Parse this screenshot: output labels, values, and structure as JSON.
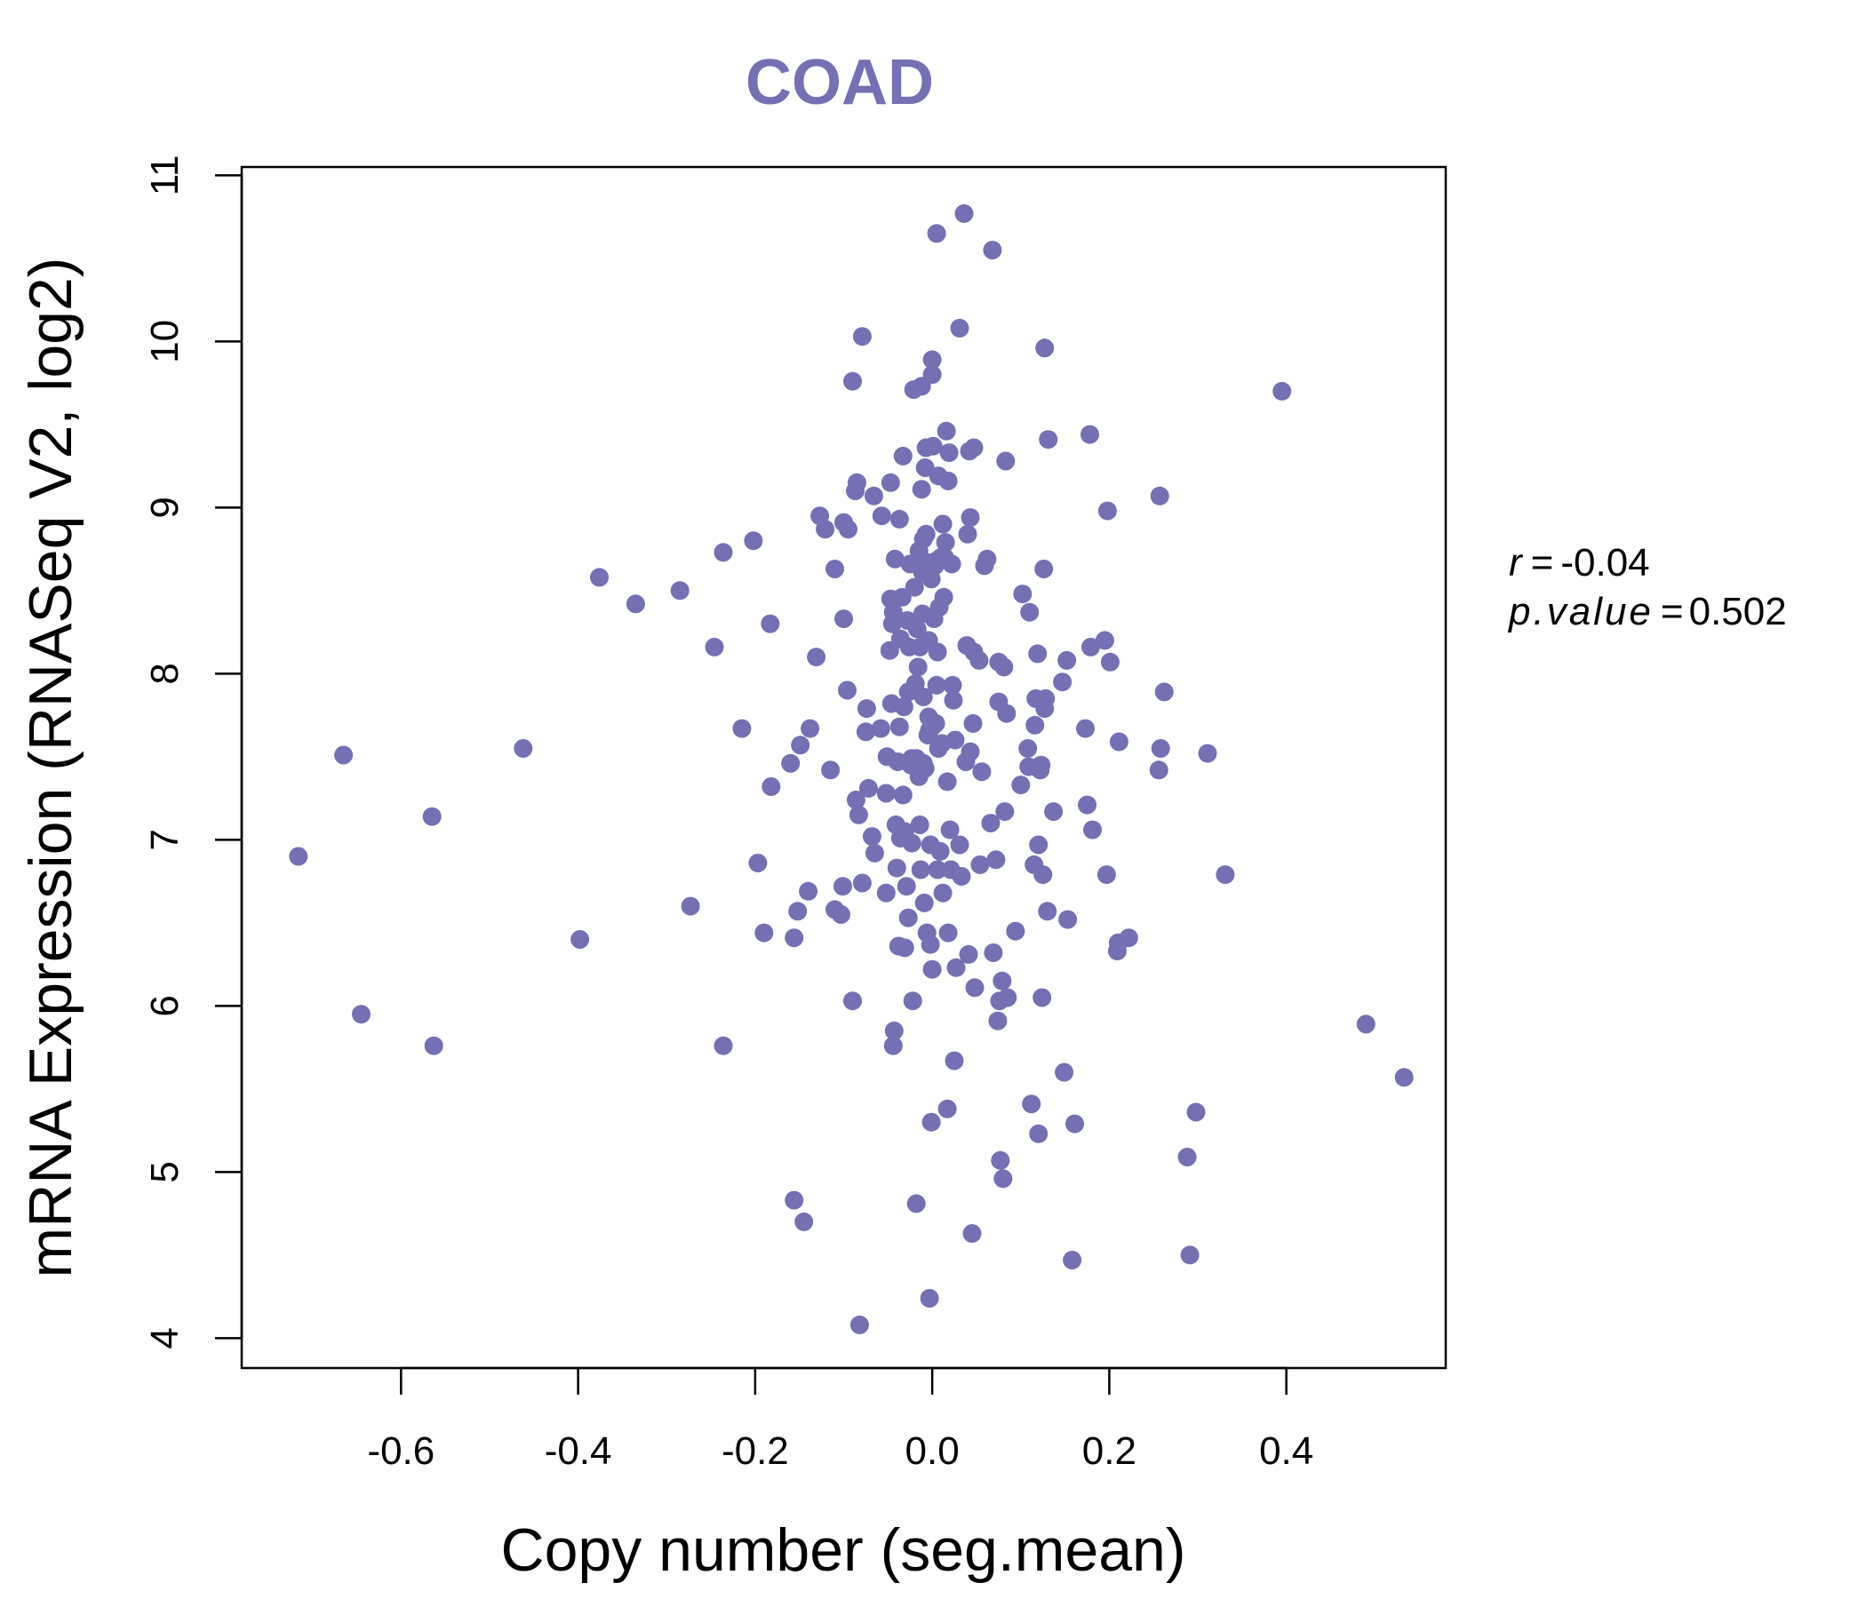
{
  "chart_data": {
    "type": "scatter",
    "title": "COAD",
    "xlabel": "Copy number (seg.mean)",
    "ylabel": "mRNA Expression (RNASeq V2, log2)",
    "xlim": [
      -0.78,
      0.58
    ],
    "ylim": [
      3.82,
      11.05
    ],
    "x_ticks": [
      -0.6,
      -0.4,
      -0.2,
      0.0,
      0.2,
      0.4
    ],
    "x_tick_labels": [
      "-0.6",
      "-0.4",
      "-0.2",
      "0.0",
      "0.2",
      "0.4"
    ],
    "y_ticks": [
      4,
      5,
      6,
      7,
      8,
      9,
      10,
      11
    ],
    "y_tick_labels": [
      "4",
      "5",
      "6",
      "7",
      "8",
      "9",
      "10",
      "11"
    ],
    "grid": false,
    "annotation": {
      "r_label": "r",
      "r_value": "-0.04",
      "p_label": "p.value",
      "p_value": "0.502"
    },
    "color": "#7570b3",
    "points": [
      [
        -0.716,
        6.9
      ],
      [
        -0.665,
        7.51
      ],
      [
        -0.645,
        5.95
      ],
      [
        -0.565,
        7.14
      ],
      [
        -0.563,
        5.76
      ],
      [
        -0.462,
        7.55
      ],
      [
        -0.398,
        6.4
      ],
      [
        -0.376,
        8.58
      ],
      [
        -0.335,
        8.42
      ],
      [
        -0.285,
        8.5
      ],
      [
        -0.273,
        6.6
      ],
      [
        -0.246,
        8.16
      ],
      [
        -0.236,
        8.73
      ],
      [
        -0.236,
        5.76
      ],
      [
        -0.215,
        7.67
      ],
      [
        -0.202,
        8.8
      ],
      [
        -0.197,
        6.86
      ],
      [
        -0.19,
        6.44
      ],
      [
        -0.183,
        8.3
      ],
      [
        -0.182,
        7.32
      ],
      [
        -0.16,
        7.46
      ],
      [
        -0.156,
        6.41
      ],
      [
        -0.156,
        4.83
      ],
      [
        -0.152,
        6.57
      ],
      [
        -0.149,
        7.57
      ],
      [
        -0.145,
        4.7
      ],
      [
        -0.14,
        6.69
      ],
      [
        -0.138,
        7.67
      ],
      [
        -0.131,
        8.1
      ],
      [
        -0.127,
        8.95
      ],
      [
        -0.121,
        8.87
      ],
      [
        -0.115,
        7.42
      ],
      [
        -0.11,
        8.63
      ],
      [
        -0.11,
        6.58
      ],
      [
        -0.103,
        6.55
      ],
      [
        -0.101,
        6.72
      ],
      [
        -0.1,
        8.33
      ],
      [
        -0.1,
        8.91
      ],
      [
        -0.096,
        7.9
      ],
      [
        -0.095,
        8.87
      ],
      [
        -0.09,
        9.76
      ],
      [
        -0.09,
        6.03
      ],
      [
        -0.087,
        9.1
      ],
      [
        -0.086,
        7.24
      ],
      [
        -0.085,
        9.15
      ],
      [
        -0.083,
        7.15
      ],
      [
        -0.082,
        4.08
      ],
      [
        -0.079,
        10.03
      ],
      [
        -0.079,
        6.74
      ],
      [
        -0.075,
        7.65
      ],
      [
        -0.074,
        7.79
      ],
      [
        -0.072,
        7.31
      ],
      [
        -0.068,
        7.02
      ],
      [
        -0.066,
        9.07
      ],
      [
        -0.065,
        6.92
      ],
      [
        -0.058,
        7.67
      ],
      [
        -0.057,
        8.95
      ],
      [
        -0.052,
        7.28
      ],
      [
        -0.052,
        6.68
      ],
      [
        -0.051,
        7.5
      ],
      [
        -0.048,
        8.14
      ],
      [
        -0.047,
        8.45
      ],
      [
        -0.047,
        9.15
      ],
      [
        -0.046,
        7.82
      ],
      [
        -0.045,
        8.3
      ],
      [
        -0.044,
        8.37
      ],
      [
        -0.044,
        5.76
      ],
      [
        -0.043,
        5.85
      ],
      [
        -0.042,
        8.69
      ],
      [
        -0.041,
        7.09
      ],
      [
        -0.04,
        6.83
      ],
      [
        -0.039,
        7.47
      ],
      [
        -0.038,
        6.36
      ],
      [
        -0.037,
        8.93
      ],
      [
        -0.037,
        7.68
      ],
      [
        -0.036,
        8.21
      ],
      [
        -0.036,
        7.01
      ],
      [
        -0.034,
        8.46
      ],
      [
        -0.033,
        9.31
      ],
      [
        -0.033,
        7.27
      ],
      [
        -0.032,
        7.8
      ],
      [
        -0.031,
        7.05
      ],
      [
        -0.031,
        6.35
      ],
      [
        -0.029,
        6.72
      ],
      [
        -0.028,
        8.32
      ],
      [
        -0.027,
        7.89
      ],
      [
        -0.027,
        6.53
      ],
      [
        -0.026,
        8.16
      ],
      [
        -0.025,
        8.66
      ],
      [
        -0.024,
        7.45
      ],
      [
        -0.023,
        6.98
      ],
      [
        -0.023,
        7.49
      ],
      [
        -0.022,
        6.03
      ],
      [
        -0.021,
        9.71
      ],
      [
        -0.02,
        8.52
      ],
      [
        -0.019,
        7.94
      ],
      [
        -0.018,
        7.49
      ],
      [
        -0.018,
        4.81
      ],
      [
        -0.017,
        8.27
      ],
      [
        -0.016,
        8.04
      ],
      [
        -0.015,
        8.74
      ],
      [
        -0.015,
        7.38
      ],
      [
        -0.014,
        8.16
      ],
      [
        -0.014,
        7.09
      ],
      [
        -0.013,
        6.82
      ],
      [
        -0.012,
        9.73
      ],
      [
        -0.012,
        9.11
      ],
      [
        -0.011,
        8.36
      ],
      [
        -0.011,
        8.61
      ],
      [
        -0.01,
        8.81
      ],
      [
        -0.01,
        7.86
      ],
      [
        -0.01,
        7.46
      ],
      [
        -0.009,
        6.62
      ],
      [
        -0.008,
        9.24
      ],
      [
        -0.008,
        7.43
      ],
      [
        -0.007,
        8.84
      ],
      [
        -0.007,
        9.36
      ],
      [
        -0.006,
        8.67
      ],
      [
        -0.006,
        6.44
      ],
      [
        -0.005,
        7.63
      ],
      [
        -0.004,
        8.2
      ],
      [
        -0.004,
        7.74
      ],
      [
        -0.003,
        7.66
      ],
      [
        -0.003,
        4.24
      ],
      [
        -0.002,
        6.97
      ],
      [
        -0.002,
        6.37
      ],
      [
        -0.001,
        8.57
      ],
      [
        -0.001,
        5.3
      ],
      [
        0.0,
        9.89
      ],
      [
        0.0,
        9.8
      ],
      [
        0.0,
        7.68
      ],
      [
        0.0,
        6.22
      ],
      [
        0.001,
        9.37
      ],
      [
        0.002,
        8.33
      ],
      [
        0.003,
        8.65
      ],
      [
        0.004,
        7.7
      ],
      [
        0.005,
        10.65
      ],
      [
        0.005,
        8.68
      ],
      [
        0.005,
        7.93
      ],
      [
        0.006,
        8.13
      ],
      [
        0.006,
        6.82
      ],
      [
        0.007,
        7.55
      ],
      [
        0.007,
        9.19
      ],
      [
        0.008,
        8.4
      ],
      [
        0.009,
        6.93
      ],
      [
        0.01,
        8.7
      ],
      [
        0.011,
        7.58
      ],
      [
        0.012,
        8.9
      ],
      [
        0.012,
        6.68
      ],
      [
        0.013,
        8.46
      ],
      [
        0.014,
        8.7
      ],
      [
        0.015,
        8.79
      ],
      [
        0.016,
        9.46
      ],
      [
        0.017,
        7.35
      ],
      [
        0.017,
        5.38
      ],
      [
        0.018,
        6.44
      ],
      [
        0.018,
        9.16
      ],
      [
        0.019,
        9.33
      ],
      [
        0.02,
        7.06
      ],
      [
        0.021,
        6.82
      ],
      [
        0.022,
        8.66
      ],
      [
        0.023,
        7.93
      ],
      [
        0.024,
        7.84
      ],
      [
        0.025,
        5.67
      ],
      [
        0.026,
        7.6
      ],
      [
        0.027,
        6.23
      ],
      [
        0.031,
        10.08
      ],
      [
        0.031,
        6.97
      ],
      [
        0.033,
        6.78
      ],
      [
        0.036,
        10.77
      ],
      [
        0.038,
        7.47
      ],
      [
        0.039,
        8.17
      ],
      [
        0.04,
        8.84
      ],
      [
        0.041,
        6.31
      ],
      [
        0.042,
        9.34
      ],
      [
        0.043,
        8.94
      ],
      [
        0.043,
        7.53
      ],
      [
        0.045,
        4.63
      ],
      [
        0.046,
        7.7
      ],
      [
        0.047,
        8.13
      ],
      [
        0.047,
        9.36
      ],
      [
        0.048,
        6.11
      ],
      [
        0.053,
        8.08
      ],
      [
        0.054,
        6.85
      ],
      [
        0.056,
        7.41
      ],
      [
        0.059,
        8.65
      ],
      [
        0.062,
        8.69
      ],
      [
        0.066,
        7.1
      ],
      [
        0.068,
        10.55
      ],
      [
        0.069,
        6.32
      ],
      [
        0.072,
        6.88
      ],
      [
        0.074,
        5.91
      ],
      [
        0.075,
        7.83
      ],
      [
        0.075,
        8.07
      ],
      [
        0.076,
        6.03
      ],
      [
        0.077,
        5.07
      ],
      [
        0.079,
        6.15
      ],
      [
        0.08,
        4.96
      ],
      [
        0.081,
        8.04
      ],
      [
        0.082,
        7.17
      ],
      [
        0.083,
        9.28
      ],
      [
        0.084,
        7.76
      ],
      [
        0.085,
        6.05
      ],
      [
        0.094,
        6.45
      ],
      [
        0.1,
        7.33
      ],
      [
        0.102,
        8.48
      ],
      [
        0.108,
        7.55
      ],
      [
        0.109,
        7.44
      ],
      [
        0.11,
        8.37
      ],
      [
        0.112,
        5.41
      ],
      [
        0.115,
        6.85
      ],
      [
        0.116,
        7.69
      ],
      [
        0.117,
        7.85
      ],
      [
        0.119,
        8.12
      ],
      [
        0.12,
        5.23
      ],
      [
        0.12,
        6.97
      ],
      [
        0.122,
        7.42
      ],
      [
        0.123,
        7.45
      ],
      [
        0.124,
        6.05
      ],
      [
        0.125,
        6.79
      ],
      [
        0.126,
        8.63
      ],
      [
        0.127,
        9.96
      ],
      [
        0.127,
        7.79
      ],
      [
        0.128,
        7.85
      ],
      [
        0.13,
        6.57
      ],
      [
        0.131,
        9.41
      ],
      [
        0.137,
        7.17
      ],
      [
        0.147,
        7.95
      ],
      [
        0.149,
        5.6
      ],
      [
        0.152,
        8.08
      ],
      [
        0.153,
        6.52
      ],
      [
        0.158,
        4.47
      ],
      [
        0.161,
        5.29
      ],
      [
        0.173,
        7.67
      ],
      [
        0.175,
        7.21
      ],
      [
        0.178,
        9.44
      ],
      [
        0.179,
        8.16
      ],
      [
        0.181,
        7.06
      ],
      [
        0.195,
        8.2
      ],
      [
        0.197,
        6.79
      ],
      [
        0.198,
        8.98
      ],
      [
        0.201,
        8.07
      ],
      [
        0.209,
        6.33
      ],
      [
        0.21,
        6.38
      ],
      [
        0.211,
        7.59
      ],
      [
        0.222,
        6.41
      ],
      [
        0.256,
        7.42
      ],
      [
        0.257,
        9.07
      ],
      [
        0.258,
        7.55
      ],
      [
        0.262,
        7.89
      ],
      [
        0.288,
        5.09
      ],
      [
        0.291,
        4.5
      ],
      [
        0.298,
        5.36
      ],
      [
        0.311,
        7.52
      ],
      [
        0.331,
        6.79
      ],
      [
        0.395,
        9.7
      ],
      [
        0.49,
        5.89
      ],
      [
        0.533,
        5.57
      ]
    ]
  }
}
